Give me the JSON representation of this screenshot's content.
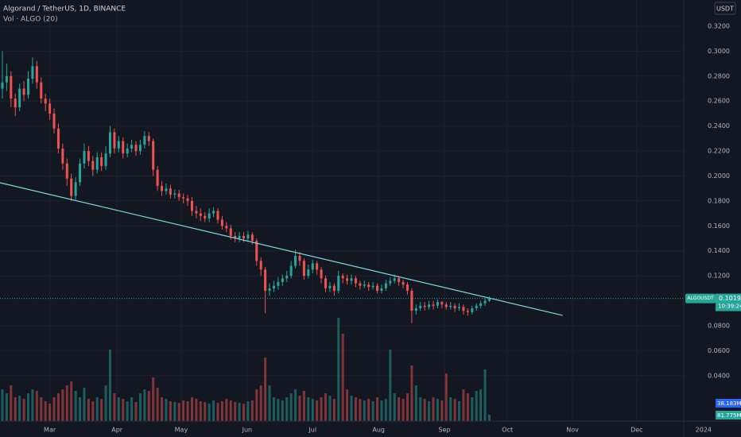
{
  "chart_data": {
    "type": "candlestick",
    "title": "Algorand / TetherUS, 1D, BINANCE",
    "subtitle": "Vol · ALGO (20)",
    "currency": "USDT",
    "symbol": "ALGOUSDT",
    "countdown": "10:39:24",
    "volume_ma_label": "38.183M",
    "last_volume_label": "81.775M",
    "up_color": "#26a69a",
    "down_color": "#ef5350",
    "trend_color": "#7fd8e0",
    "grid": true,
    "xlim": [
      -0.55,
      171.4
    ],
    "ylim": [
      0.0036,
      0.341
    ],
    "volume_lim": [
      0,
      1350
    ],
    "xticks": [
      {
        "value": 11.0,
        "label": "Mar"
      },
      {
        "value": 26.6,
        "label": "Apr"
      },
      {
        "value": 41.5,
        "label": "May"
      },
      {
        "value": 56.8,
        "label": "Jun"
      },
      {
        "value": 72.0,
        "label": "Jul"
      },
      {
        "value": 87.3,
        "label": "Aug"
      },
      {
        "value": 102.6,
        "label": "Sep"
      },
      {
        "value": 117.2,
        "label": "Oct"
      },
      {
        "value": 132.3,
        "label": "Nov"
      },
      {
        "value": 147.2,
        "label": "Dec"
      },
      {
        "value": 162.7,
        "label": "2024"
      }
    ],
    "yticks": [
      {
        "value": 0.32,
        "label": "0.3200"
      },
      {
        "value": 0.3,
        "label": "0.3000"
      },
      {
        "value": 0.28,
        "label": "0.2800"
      },
      {
        "value": 0.26,
        "label": "0.2600"
      },
      {
        "value": 0.24,
        "label": "0.2400"
      },
      {
        "value": 0.22,
        "label": "0.2200"
      },
      {
        "value": 0.2,
        "label": "0.2000"
      },
      {
        "value": 0.18,
        "label": "0.1800"
      },
      {
        "value": 0.16,
        "label": "0.1600"
      },
      {
        "value": 0.14,
        "label": "0.1400"
      },
      {
        "value": 0.12,
        "label": "0.1200"
      },
      {
        "value": 0.08,
        "label": "0.0800"
      },
      {
        "value": 0.06,
        "label": "0.0600"
      },
      {
        "value": 0.04,
        "label": "0.0400"
      }
    ],
    "trendline": {
      "x": [
        -0.55,
        130
      ],
      "y": [
        0.1946,
        0.0883
      ]
    },
    "open": [
      0.27,
      0.275,
      0.28,
      0.262,
      0.255,
      0.27,
      0.265,
      0.278,
      0.288,
      0.275,
      0.262,
      0.258,
      0.25,
      0.238,
      0.222,
      0.21,
      0.198,
      0.184,
      0.195,
      0.21,
      0.22,
      0.212,
      0.205,
      0.215,
      0.208,
      0.218,
      0.235,
      0.222,
      0.228,
      0.218,
      0.222,
      0.225,
      0.22,
      0.225,
      0.232,
      0.228,
      0.205,
      0.192,
      0.188,
      0.19,
      0.185,
      0.186,
      0.183,
      0.182,
      0.18,
      0.172,
      0.17,
      0.168,
      0.166,
      0.17,
      0.172,
      0.165,
      0.16,
      0.158,
      0.152,
      0.15,
      0.152,
      0.15,
      0.153,
      0.148,
      0.132,
      0.125,
      0.108,
      0.11,
      0.112,
      0.115,
      0.118,
      0.12,
      0.128,
      0.136,
      0.132,
      0.12,
      0.125,
      0.13,
      0.125,
      0.118,
      0.11,
      0.112,
      0.108,
      0.12,
      0.118,
      0.116,
      0.118,
      0.114,
      0.112,
      0.113,
      0.111,
      0.112,
      0.108,
      0.11,
      0.114,
      0.116,
      0.118,
      0.115,
      0.113,
      0.108,
      0.092,
      0.094,
      0.096,
      0.095,
      0.097,
      0.096,
      0.099,
      0.097,
      0.095,
      0.096,
      0.094,
      0.095,
      0.092,
      0.091,
      0.094,
      0.096,
      0.098,
      0.1
    ],
    "high": [
      0.3,
      0.29,
      0.284,
      0.266,
      0.274,
      0.276,
      0.284,
      0.295,
      0.292,
      0.279,
      0.266,
      0.262,
      0.254,
      0.242,
      0.226,
      0.214,
      0.202,
      0.199,
      0.214,
      0.226,
      0.224,
      0.216,
      0.219,
      0.219,
      0.224,
      0.24,
      0.238,
      0.232,
      0.231,
      0.226,
      0.229,
      0.228,
      0.229,
      0.236,
      0.235,
      0.23,
      0.208,
      0.196,
      0.194,
      0.193,
      0.189,
      0.189,
      0.186,
      0.185,
      0.183,
      0.176,
      0.174,
      0.171,
      0.174,
      0.175,
      0.174,
      0.168,
      0.163,
      0.161,
      0.155,
      0.155,
      0.155,
      0.156,
      0.155,
      0.15,
      0.135,
      0.127,
      0.114,
      0.116,
      0.119,
      0.121,
      0.124,
      0.132,
      0.141,
      0.139,
      0.134,
      0.129,
      0.133,
      0.132,
      0.127,
      0.12,
      0.115,
      0.114,
      0.124,
      0.122,
      0.121,
      0.121,
      0.12,
      0.116,
      0.116,
      0.115,
      0.115,
      0.114,
      0.113,
      0.117,
      0.119,
      0.121,
      0.12,
      0.117,
      0.115,
      0.11,
      0.097,
      0.099,
      0.099,
      0.1,
      0.1,
      0.101,
      0.1,
      0.099,
      0.099,
      0.098,
      0.098,
      0.097,
      0.094,
      0.096,
      0.098,
      0.1,
      0.102,
      0.1035
    ],
    "low": [
      0.262,
      0.268,
      0.255,
      0.248,
      0.252,
      0.26,
      0.262,
      0.274,
      0.27,
      0.258,
      0.252,
      0.245,
      0.234,
      0.218,
      0.205,
      0.192,
      0.18,
      0.181,
      0.192,
      0.206,
      0.208,
      0.2,
      0.202,
      0.204,
      0.205,
      0.215,
      0.218,
      0.219,
      0.214,
      0.215,
      0.219,
      0.216,
      0.217,
      0.222,
      0.224,
      0.2,
      0.188,
      0.184,
      0.185,
      0.182,
      0.182,
      0.18,
      0.178,
      0.176,
      0.168,
      0.166,
      0.164,
      0.163,
      0.163,
      0.167,
      0.162,
      0.157,
      0.155,
      0.149,
      0.147,
      0.147,
      0.147,
      0.148,
      0.145,
      0.128,
      0.12,
      0.09,
      0.104,
      0.107,
      0.109,
      0.112,
      0.115,
      0.118,
      0.126,
      0.128,
      0.117,
      0.118,
      0.122,
      0.121,
      0.114,
      0.107,
      0.107,
      0.104,
      0.106,
      0.114,
      0.113,
      0.113,
      0.111,
      0.109,
      0.11,
      0.108,
      0.109,
      0.106,
      0.106,
      0.108,
      0.112,
      0.114,
      0.112,
      0.11,
      0.105,
      0.082,
      0.089,
      0.092,
      0.092,
      0.093,
      0.093,
      0.094,
      0.094,
      0.093,
      0.093,
      0.091,
      0.092,
      0.089,
      0.088,
      0.089,
      0.092,
      0.094,
      0.096,
      0.099
    ],
    "close": [
      0.275,
      0.28,
      0.262,
      0.255,
      0.27,
      0.265,
      0.278,
      0.288,
      0.275,
      0.262,
      0.258,
      0.25,
      0.238,
      0.222,
      0.21,
      0.198,
      0.184,
      0.195,
      0.21,
      0.22,
      0.212,
      0.205,
      0.215,
      0.208,
      0.218,
      0.235,
      0.222,
      0.228,
      0.218,
      0.222,
      0.225,
      0.22,
      0.225,
      0.232,
      0.228,
      0.205,
      0.192,
      0.188,
      0.19,
      0.185,
      0.186,
      0.183,
      0.182,
      0.18,
      0.172,
      0.17,
      0.168,
      0.166,
      0.17,
      0.172,
      0.165,
      0.16,
      0.158,
      0.152,
      0.15,
      0.152,
      0.15,
      0.153,
      0.148,
      0.132,
      0.125,
      0.108,
      0.11,
      0.112,
      0.115,
      0.118,
      0.12,
      0.128,
      0.136,
      0.132,
      0.12,
      0.125,
      0.13,
      0.125,
      0.118,
      0.11,
      0.112,
      0.108,
      0.12,
      0.118,
      0.116,
      0.118,
      0.114,
      0.112,
      0.113,
      0.111,
      0.112,
      0.108,
      0.11,
      0.114,
      0.116,
      0.118,
      0.115,
      0.113,
      0.108,
      0.092,
      0.094,
      0.096,
      0.095,
      0.097,
      0.096,
      0.099,
      0.097,
      0.095,
      0.096,
      0.094,
      0.095,
      0.092,
      0.091,
      0.094,
      0.096,
      0.098,
      0.1,
      0.1019
    ],
    "volume": [
      400,
      350,
      450,
      300,
      320,
      280,
      350,
      400,
      380,
      300,
      250,
      220,
      300,
      350,
      400,
      450,
      500,
      380,
      300,
      420,
      280,
      250,
      300,
      280,
      450,
      900,
      350,
      300,
      280,
      250,
      300,
      240,
      350,
      400,
      380,
      550,
      420,
      300,
      280,
      250,
      240,
      230,
      260,
      250,
      300,
      280,
      250,
      240,
      220,
      260,
      230,
      250,
      280,
      260,
      240,
      230,
      220,
      250,
      260,
      400,
      450,
      800,
      450,
      300,
      280,
      260,
      300,
      350,
      400,
      320,
      380,
      300,
      280,
      260,
      300,
      350,
      320,
      280,
      1300,
      1100,
      400,
      320,
      300,
      280,
      260,
      280,
      250,
      300,
      260,
      280,
      900,
      350,
      300,
      280,
      350,
      700,
      450,
      300,
      280,
      250,
      300,
      280,
      260,
      600,
      300,
      280,
      250,
      400,
      350,
      300,
      380,
      400,
      650,
      81.775
    ]
  }
}
